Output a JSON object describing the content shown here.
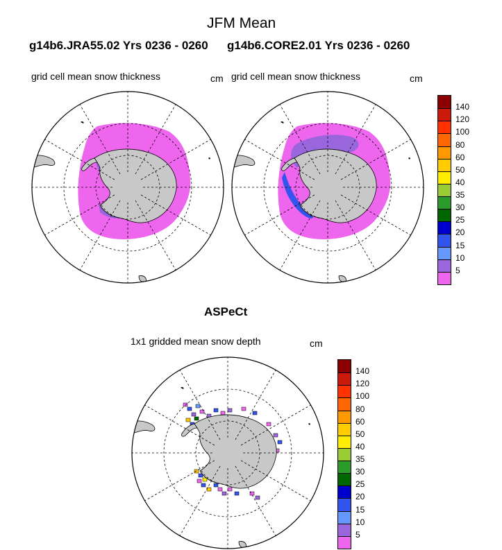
{
  "title": "JFM Mean",
  "subtitle_left": "g14b6.JRA55.02  Yrs 0236 - 0260",
  "subtitle_right": "g14b6.CORE2.01  Yrs 0236 - 0260",
  "panels": [
    {
      "label": "grid cell mean snow thickness",
      "unit": "cm",
      "variant": "model_jra"
    },
    {
      "label": "grid cell mean snow thickness",
      "unit": "cm",
      "variant": "model_core"
    },
    {
      "label": "1x1 gridded mean snow depth",
      "unit": "cm",
      "variant": "obs",
      "section_title": "ASPeCt"
    }
  ],
  "colorbar": {
    "levels": [
      "140",
      "120",
      "100",
      "80",
      "60",
      "50",
      "40",
      "35",
      "30",
      "25",
      "20",
      "15",
      "10",
      "5"
    ],
    "colors": [
      "#8b0000",
      "#cd1a0a",
      "#ff3300",
      "#ff6600",
      "#ff9900",
      "#ffcc00",
      "#ffee00",
      "#99cc33",
      "#2a9a2a",
      "#006600",
      "#0000cc",
      "#3355ee",
      "#6699ff",
      "#9966dd",
      "#ee66ee"
    ]
  },
  "colors": {
    "land": "#c8c8c8",
    "snow_low": "#ee66ee",
    "snow_mid": "#9966dd",
    "snow_high": "#3355ee"
  }
}
